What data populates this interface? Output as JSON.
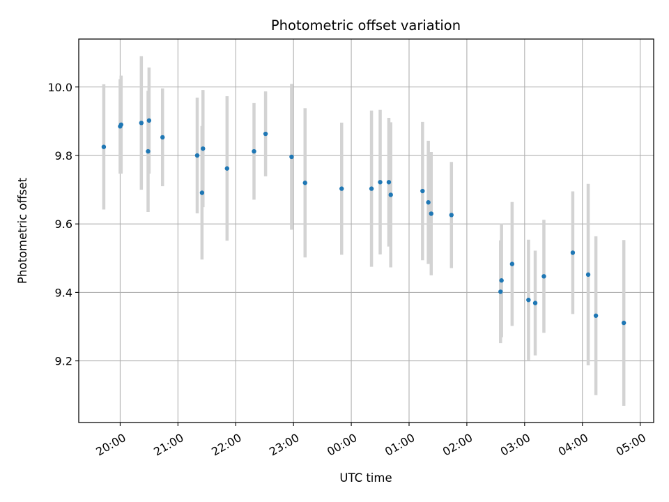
{
  "chart_data": {
    "type": "scatter",
    "title": "Photometric offset variation",
    "xlabel": "UTC time",
    "ylabel": "Photometric offset",
    "grid": true,
    "x_range": [
      "2024-01-01T19:17",
      "2024-01-02T05:14"
    ],
    "y_range": [
      9.02,
      10.14
    ],
    "x_ticks": [
      {
        "t": "2024-01-01T20:00",
        "label": "20:00"
      },
      {
        "t": "2024-01-01T21:00",
        "label": "21:00"
      },
      {
        "t": "2024-01-01T22:00",
        "label": "22:00"
      },
      {
        "t": "2024-01-01T23:00",
        "label": "23:00"
      },
      {
        "t": "2024-01-02T00:00",
        "label": "00:00"
      },
      {
        "t": "2024-01-02T01:00",
        "label": "01:00"
      },
      {
        "t": "2024-01-02T02:00",
        "label": "02:00"
      },
      {
        "t": "2024-01-02T03:00",
        "label": "03:00"
      },
      {
        "t": "2024-01-02T04:00",
        "label": "04:00"
      },
      {
        "t": "2024-01-02T05:00",
        "label": "05:00"
      }
    ],
    "y_ticks": [
      {
        "v": 9.2,
        "label": "9.2"
      },
      {
        "v": 9.4,
        "label": "9.4"
      },
      {
        "v": 9.6,
        "label": "9.6"
      },
      {
        "v": 9.8,
        "label": "9.8"
      },
      {
        "v": 10.0,
        "label": "10.0"
      }
    ],
    "colors": {
      "point": "#1f77b4",
      "errorbar": "#d3d3d3",
      "grid": "#b0b0b0"
    },
    "points": [
      {
        "t": "2024-01-01T19:43",
        "y": 9.825,
        "err": 0.183
      },
      {
        "t": "2024-01-01T20:00",
        "y": 9.885,
        "err": 0.138
      },
      {
        "t": "2024-01-01T20:01",
        "y": 9.89,
        "err": 0.143
      },
      {
        "t": "2024-01-01T20:22",
        "y": 9.895,
        "err": 0.195
      },
      {
        "t": "2024-01-01T20:29",
        "y": 9.812,
        "err": 0.177
      },
      {
        "t": "2024-01-01T20:30",
        "y": 9.902,
        "err": 0.155
      },
      {
        "t": "2024-01-01T20:44",
        "y": 9.853,
        "err": 0.143
      },
      {
        "t": "2024-01-01T21:20",
        "y": 9.8,
        "err": 0.169
      },
      {
        "t": "2024-01-01T21:25",
        "y": 9.691,
        "err": 0.195
      },
      {
        "t": "2024-01-01T21:26",
        "y": 9.82,
        "err": 0.171
      },
      {
        "t": "2024-01-01T21:51",
        "y": 9.762,
        "err": 0.211
      },
      {
        "t": "2024-01-01T22:19",
        "y": 9.812,
        "err": 0.141
      },
      {
        "t": "2024-01-01T22:31",
        "y": 9.863,
        "err": 0.124
      },
      {
        "t": "2024-01-01T22:58",
        "y": 9.796,
        "err": 0.213
      },
      {
        "t": "2024-01-01T23:12",
        "y": 9.72,
        "err": 0.218
      },
      {
        "t": "2024-01-01T23:50",
        "y": 9.703,
        "err": 0.193
      },
      {
        "t": "2024-01-02T00:21",
        "y": 9.703,
        "err": 0.228
      },
      {
        "t": "2024-01-02T00:30",
        "y": 9.722,
        "err": 0.211
      },
      {
        "t": "2024-01-02T00:39",
        "y": 9.722,
        "err": 0.188
      },
      {
        "t": "2024-01-02T00:41",
        "y": 9.685,
        "err": 0.212
      },
      {
        "t": "2024-01-02T01:14",
        "y": 9.696,
        "err": 0.202
      },
      {
        "t": "2024-01-02T01:20",
        "y": 9.663,
        "err": 0.18
      },
      {
        "t": "2024-01-02T01:23",
        "y": 9.63,
        "err": 0.18
      },
      {
        "t": "2024-01-02T01:44",
        "y": 9.626,
        "err": 0.155
      },
      {
        "t": "2024-01-02T02:35",
        "y": 9.402,
        "err": 0.15
      },
      {
        "t": "2024-01-02T02:36",
        "y": 9.435,
        "err": 0.166
      },
      {
        "t": "2024-01-02T02:47",
        "y": 9.483,
        "err": 0.181
      },
      {
        "t": "2024-01-02T03:04",
        "y": 9.378,
        "err": 0.176
      },
      {
        "t": "2024-01-02T03:11",
        "y": 9.369,
        "err": 0.153
      },
      {
        "t": "2024-01-02T03:20",
        "y": 9.447,
        "err": 0.165
      },
      {
        "t": "2024-01-02T03:50",
        "y": 9.516,
        "err": 0.179
      },
      {
        "t": "2024-01-02T04:06",
        "y": 9.452,
        "err": 0.265
      },
      {
        "t": "2024-01-02T04:14",
        "y": 9.332,
        "err": 0.232
      },
      {
        "t": "2024-01-02T04:43",
        "y": 9.311,
        "err": 0.242
      }
    ]
  }
}
